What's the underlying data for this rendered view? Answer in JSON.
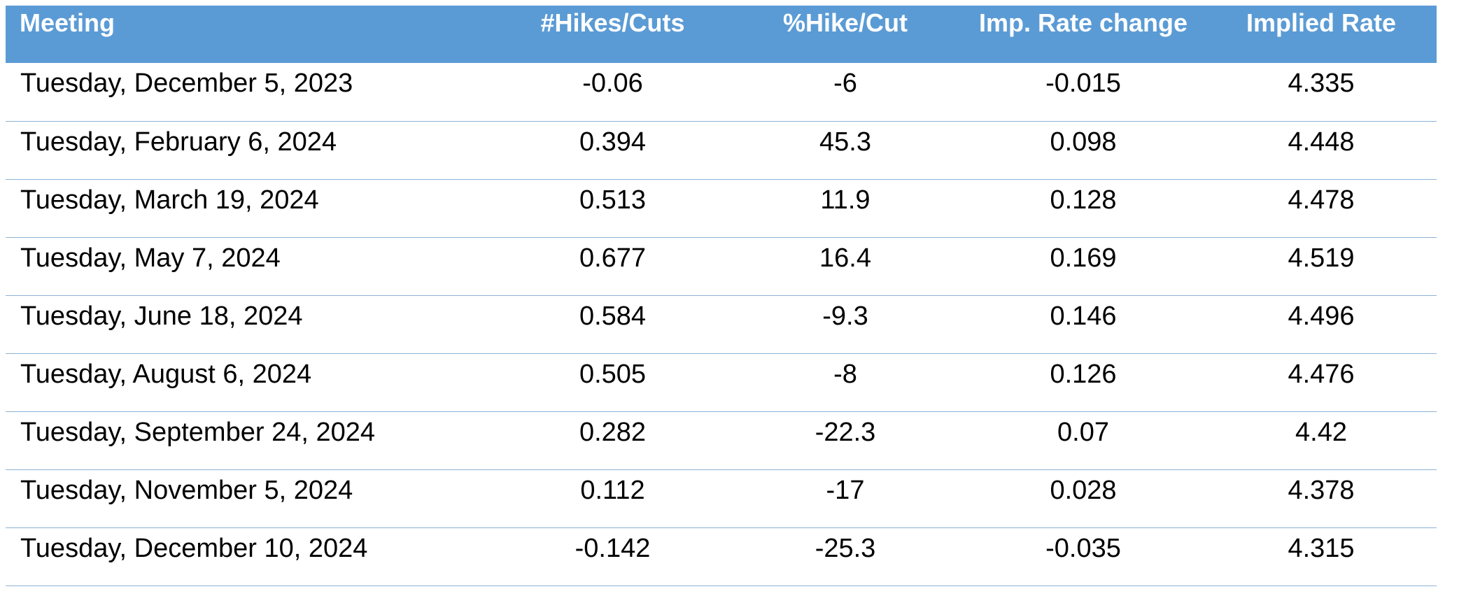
{
  "table": {
    "headers": [
      "Meeting",
      "#Hikes/Cuts",
      "%Hike/Cut",
      "Imp. Rate change",
      "Implied Rate"
    ],
    "rows": [
      [
        "Tuesday, December 5, 2023",
        "-0.06",
        "-6",
        "-0.015",
        "4.335"
      ],
      [
        "Tuesday, February 6, 2024",
        "0.394",
        "45.3",
        "0.098",
        "4.448"
      ],
      [
        "Tuesday, March 19, 2024",
        "0.513",
        "11.9",
        "0.128",
        "4.478"
      ],
      [
        "Tuesday, May 7, 2024",
        "0.677",
        "16.4",
        "0.169",
        "4.519"
      ],
      [
        "Tuesday, June 18, 2024",
        "0.584",
        "-9.3",
        "0.146",
        "4.496"
      ],
      [
        "Tuesday, August 6, 2024",
        "0.505",
        "-8",
        "0.126",
        "4.476"
      ],
      [
        "Tuesday, September 24, 2024",
        "0.282",
        "-22.3",
        "0.07",
        "4.42"
      ],
      [
        "Tuesday, November 5, 2024",
        "0.112",
        "-17",
        "0.028",
        "4.378"
      ],
      [
        "Tuesday, December 10, 2024",
        "-0.142",
        "-25.3",
        "-0.035",
        "4.315"
      ]
    ]
  },
  "colors": {
    "header_background": "#5b9bd5",
    "header_text": "#ffffff",
    "row_divider": "#8db3d6"
  }
}
